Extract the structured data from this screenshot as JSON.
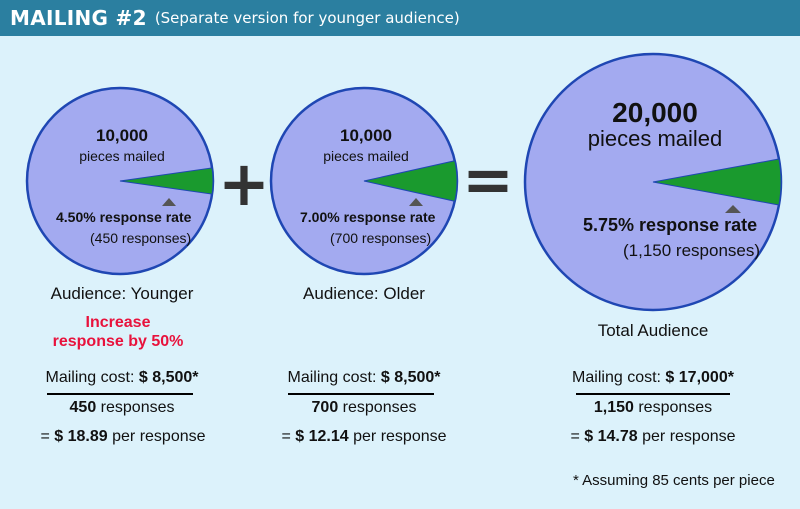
{
  "header": {
    "title": "MAILING #2",
    "subtitle": "(Separate version for younger audience)"
  },
  "operators": {
    "plus": "+",
    "equals": "="
  },
  "pies": [
    {
      "count": "10,000",
      "pieces_label": "pieces mailed",
      "rate_value": "4.50",
      "rate_suffix": "% response rate",
      "responses_text": "(450 responses)",
      "response_fraction": 0.045,
      "audience": "Audience: Younger"
    },
    {
      "count": "10,000",
      "pieces_label": "pieces mailed",
      "rate_value": "7.00",
      "rate_suffix": "% response rate",
      "responses_text": "(700 responses)",
      "response_fraction": 0.07,
      "audience": "Audience: Older"
    },
    {
      "count": "20,000",
      "pieces_label": "pieces mailed",
      "rate_value": "5.75",
      "rate_suffix": "% response rate",
      "responses_text": "(1,150 responses)",
      "response_fraction": 0.0575,
      "audience": "Total Audience"
    }
  ],
  "callout": {
    "line1": "Increase",
    "line2": "response by 50%"
  },
  "costs": [
    {
      "label": "Mailing cost: ",
      "amount": "$ 8,500*",
      "responses_num": "450",
      "responses_word": " responses",
      "per_prefix": "= ",
      "per_value": "$ 18.89",
      "per_suffix": " per response"
    },
    {
      "label": "Mailing cost: ",
      "amount": "$ 8,500*",
      "responses_num": "700",
      "responses_word": " responses",
      "per_prefix": "= ",
      "per_value": "$ 12.14",
      "per_suffix": " per response"
    },
    {
      "label": "Mailing cost: ",
      "amount": "$ 17,000*",
      "responses_num": "1,150",
      "responses_word": " responses",
      "per_prefix": "= ",
      "per_value": "$ 14.78",
      "per_suffix": " per response"
    }
  ],
  "footnote": "* Assuming 85 cents per piece",
  "colors": {
    "header_bg": "#2b7fa0",
    "panel_bg": "#dcf2fb",
    "pie_fill": "#a3aaf0",
    "pie_stroke": "#1f47b3",
    "slice_fill": "#1a9a2e",
    "callout": "#e8123c",
    "marker": "#555555"
  }
}
